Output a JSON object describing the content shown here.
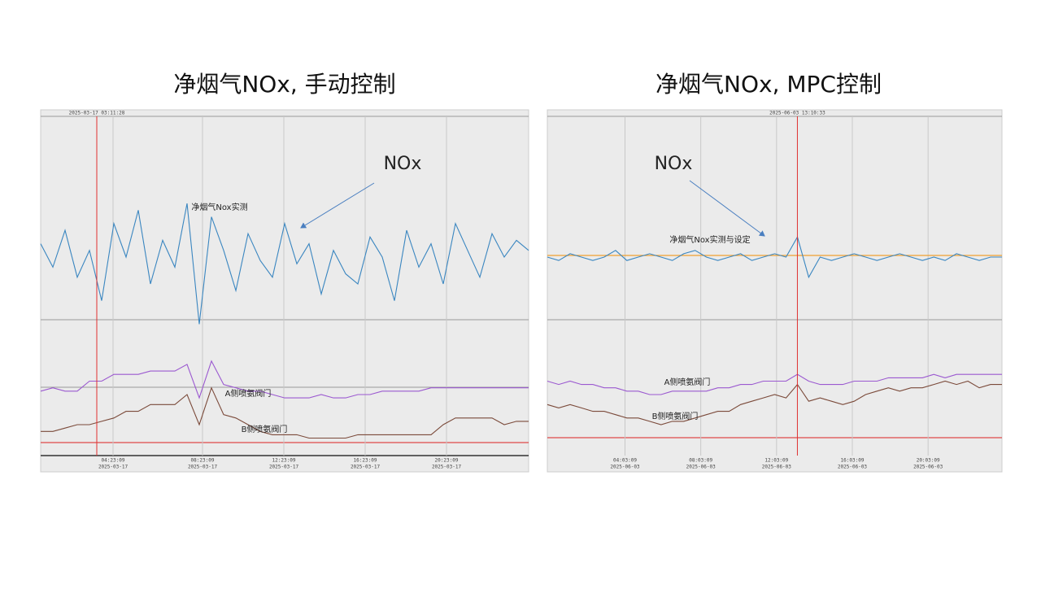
{
  "chart_data": [
    {
      "type": "line",
      "title": "净烟气NOx, 手动控制",
      "annotation": "NOx",
      "cursor": {
        "x": 2.76,
        "label": "2025-03-17 03:11:28"
      },
      "xlim": [
        0,
        24
      ],
      "ylim": [
        0,
        100
      ],
      "xticks": [
        {
          "value": 3.56,
          "label": "04:23:09"
        },
        {
          "value": 7.96,
          "label": "08:23:09"
        },
        {
          "value": 11.96,
          "label": "12:23:09"
        },
        {
          "value": 15.96,
          "label": "16:23:09"
        },
        {
          "value": 19.96,
          "label": "20:23:09"
        }
      ],
      "xtick_dates": [
        "2025-03-17",
        "2025-03-17",
        "2025-03-17",
        "2025-03-17",
        "2025-03-17"
      ],
      "grid": true,
      "x": [
        0,
        0.6,
        1.2,
        1.8,
        2.4,
        3,
        3.6,
        4.2,
        4.8,
        5.4,
        6,
        6.6,
        7.2,
        7.8,
        8.4,
        9,
        9.6,
        10.2,
        10.8,
        11.4,
        12,
        12.6,
        13.2,
        13.8,
        14.4,
        15,
        15.6,
        16.2,
        16.8,
        17.4,
        18,
        18.6,
        19.2,
        19.8,
        20.4,
        21,
        21.6,
        22.2,
        22.8,
        23.4,
        24
      ],
      "series": [
        {
          "name": "净烟气Nox实测",
          "color": "#3a86c0",
          "values": [
            62,
            55,
            66,
            52,
            60,
            45,
            68,
            58,
            72,
            50,
            63,
            55,
            74,
            38,
            70,
            60,
            48,
            65,
            57,
            52,
            68,
            56,
            62,
            47,
            60,
            53,
            50,
            64,
            58,
            45,
            66,
            55,
            62,
            50,
            68,
            60,
            52,
            65,
            58,
            63,
            60
          ]
        },
        {
          "name": "A侧喷氨阀门",
          "color": "#9b59d0",
          "values": [
            18,
            19,
            18,
            18,
            21,
            21,
            23,
            23,
            23,
            24,
            24,
            24,
            26,
            16,
            27,
            20,
            19,
            18,
            18,
            17,
            16,
            16,
            16,
            17,
            16,
            16,
            17,
            17,
            18,
            18,
            18,
            18,
            19,
            19,
            19,
            19,
            19,
            19,
            19,
            19,
            19
          ]
        },
        {
          "name": "B侧喷氨阀门",
          "color": "#7b4a3a",
          "values": [
            6,
            6,
            7,
            8,
            8,
            9,
            10,
            12,
            12,
            14,
            14,
            14,
            17,
            8,
            19,
            11,
            10,
            8,
            6,
            5,
            5,
            5,
            4,
            4,
            4,
            4,
            5,
            5,
            5,
            5,
            5,
            5,
            5,
            8,
            10,
            10,
            10,
            10,
            8,
            9,
            9
          ]
        }
      ]
    },
    {
      "type": "line",
      "title": "净烟气NOx, MPC控制",
      "annotation": "NOx",
      "cursor": {
        "x": 13.2,
        "label": "2025-06-03 13:10:33"
      },
      "xlim": [
        0,
        24
      ],
      "ylim": [
        0,
        100
      ],
      "xticks": [
        {
          "value": 4.1,
          "label": "04:03:09"
        },
        {
          "value": 8.1,
          "label": "08:03:09"
        },
        {
          "value": 12.1,
          "label": "12:03:09"
        },
        {
          "value": 16.1,
          "label": "16:03:09"
        },
        {
          "value": 20.1,
          "label": "20:03:09"
        }
      ],
      "xtick_dates": [
        "2025-06-03",
        "2025-06-03",
        "2025-06-03",
        "2025-06-03",
        "2025-06-03"
      ],
      "grid": true,
      "reference_line": {
        "value": 58.5,
        "color": "#f0a030"
      },
      "x": [
        0,
        0.6,
        1.2,
        1.8,
        2.4,
        3,
        3.6,
        4.2,
        4.8,
        5.4,
        6,
        6.6,
        7.2,
        7.8,
        8.4,
        9,
        9.6,
        10.2,
        10.8,
        11.4,
        12,
        12.6,
        13.2,
        13.8,
        14.4,
        15,
        15.6,
        16.2,
        16.8,
        17.4,
        18,
        18.6,
        19.2,
        19.8,
        20.4,
        21,
        21.6,
        22.2,
        22.8,
        23.4,
        24
      ],
      "series": [
        {
          "name": "净烟气Nox实测与设定",
          "color": "#3a86c0",
          "values": [
            58,
            57,
            59,
            58,
            57,
            58,
            60,
            57,
            58,
            59,
            58,
            57,
            59,
            60,
            58,
            57,
            58,
            59,
            57,
            58,
            59,
            58,
            64,
            52,
            58,
            57,
            58,
            59,
            58,
            57,
            58,
            59,
            58,
            57,
            58,
            57,
            59,
            58,
            57,
            58,
            58
          ]
        },
        {
          "name": "A侧喷氨阀门",
          "color": "#9b59d0",
          "values": [
            21,
            20,
            21,
            20,
            20,
            19,
            19,
            18,
            18,
            17,
            17,
            18,
            18,
            18,
            18,
            19,
            19,
            20,
            20,
            21,
            21,
            21,
            23,
            21,
            20,
            20,
            20,
            21,
            21,
            21,
            22,
            22,
            22,
            22,
            23,
            22,
            23,
            23,
            23,
            23,
            23
          ]
        },
        {
          "name": "B侧喷氨阀门",
          "color": "#7b4a3a",
          "values": [
            14,
            13,
            14,
            13,
            12,
            12,
            11,
            10,
            10,
            9,
            8,
            9,
            9,
            10,
            11,
            12,
            12,
            14,
            15,
            16,
            17,
            16,
            20,
            15,
            16,
            15,
            14,
            15,
            17,
            18,
            19,
            18,
            19,
            19,
            20,
            21,
            20,
            21,
            19,
            20,
            20
          ]
        }
      ]
    }
  ]
}
